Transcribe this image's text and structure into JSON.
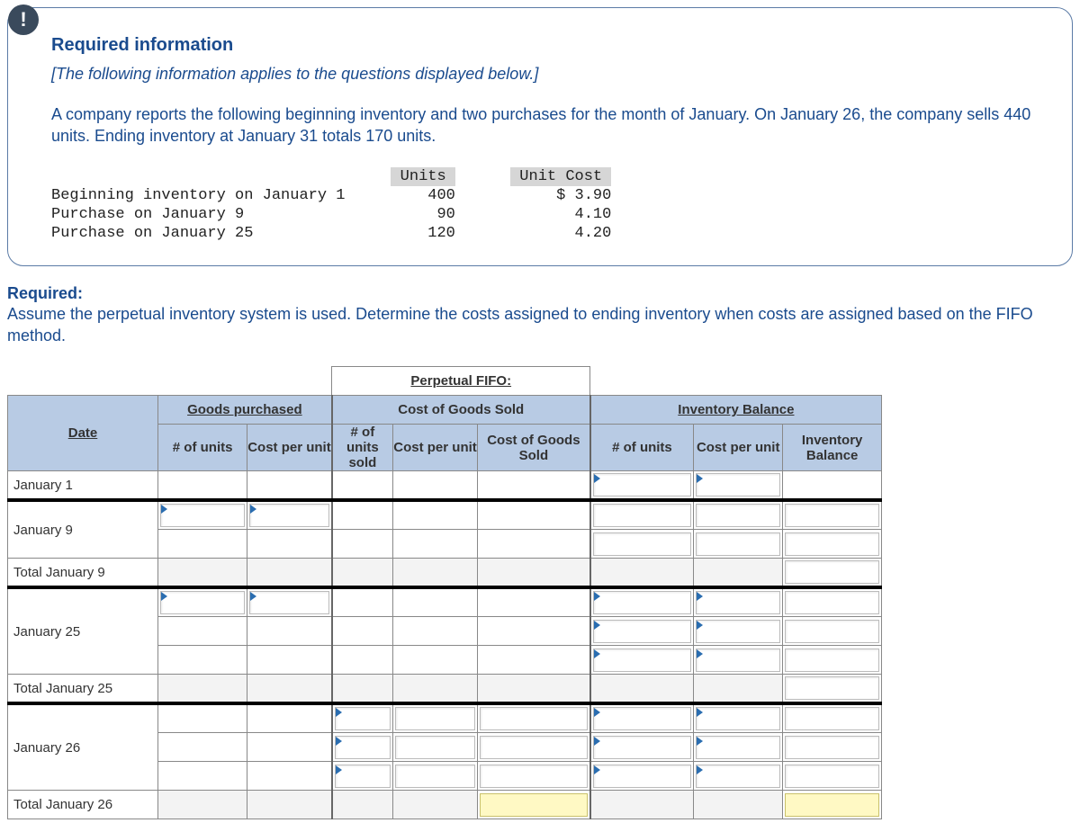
{
  "info": {
    "badge": "!",
    "title": "Required information",
    "note": "[The following information applies to the questions displayed below.]",
    "body": "A company reports the following beginning inventory and two purchases for the month of January. On January 26, the company sells 440 units. Ending inventory at January 31 totals 170 units."
  },
  "mono": {
    "header_col1_pad": "                                     ",
    "header_units": " Units ",
    "header_gap": "      ",
    "header_cost": " Unit Cost ",
    "rows": [
      {
        "label": "Beginning inventory on January 1",
        "units": "400",
        "cost": "$ 3.90"
      },
      {
        "label": "Purchase on January 9",
        "units": "90",
        "cost": "4.10"
      },
      {
        "label": "Purchase on January 25",
        "units": "120",
        "cost": "4.20"
      }
    ],
    "col_label_width": 37,
    "col_units_width": 7,
    "col_gap_width": 6,
    "col_cost_width": 11
  },
  "required": {
    "label": "Required:",
    "text": "Assume the perpetual inventory system is used. Determine the costs assigned to ending inventory when costs are assigned based on the FIFO method."
  },
  "ws": {
    "title": "Perpetual FIFO:",
    "group_goods": "Goods purchased",
    "group_cogs": "Cost of Goods Sold",
    "group_inv": "Inventory Balance",
    "h_date": "Date",
    "h_units": "# of units",
    "h_cpu": "Cost per unit",
    "h_units_sold": "# of units sold",
    "h_cpu2": "Cost per unit",
    "h_cogs": "Cost of Goods Sold",
    "h_units3": "# of units",
    "h_cpu3": "Cost per unit",
    "h_invbal": "Inventory Balance",
    "rows": {
      "r1": "January 1",
      "r2": "January 9",
      "r3": "Total January 9",
      "r4": "January 25",
      "r5": "Total January 25",
      "r6": "January 26",
      "r7": "Total January 26"
    }
  },
  "colors": {
    "brand_blue": "#1a4b8e",
    "header_blue": "#b8cbe4",
    "badge_bg": "#3a4a5c",
    "tri": "#2a6db0",
    "yellow": "#fff9c4"
  }
}
